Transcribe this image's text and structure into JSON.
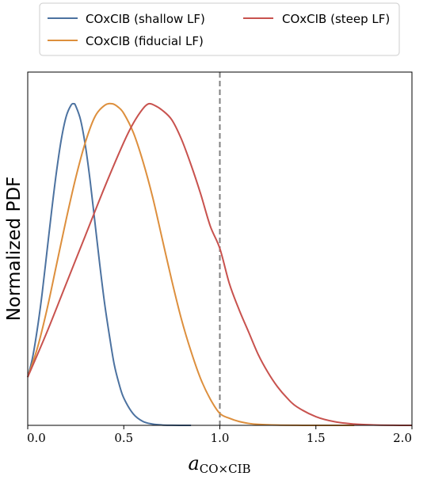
{
  "chart_data": {
    "type": "line",
    "xlabel_main": "a",
    "xlabel_sub": "CO×CIB",
    "ylabel": "Normalized PDF",
    "xlim": [
      0.0,
      2.0
    ],
    "ylim": [
      0.0,
      1.0
    ],
    "xticks": [
      "0.0",
      "0.5",
      "1.0",
      "1.5",
      "2.0"
    ],
    "y_ticklabels_shown": false,
    "grid": false,
    "legend_position": "top",
    "vline": {
      "x": 1.0,
      "style": "dashed",
      "color": "#7f7f7f"
    },
    "series": [
      {
        "name": "COxCIB (shallow LF)",
        "color": "#4c72a0",
        "x": [
          0.0,
          0.025,
          0.05,
          0.075,
          0.1,
          0.125,
          0.15,
          0.175,
          0.2,
          0.225,
          0.24,
          0.25,
          0.275,
          0.3,
          0.325,
          0.35,
          0.375,
          0.4,
          0.425,
          0.45,
          0.475,
          0.5,
          0.55,
          0.6,
          0.65,
          0.7,
          0.75,
          0.8,
          0.85
        ],
        "y": [
          0.15,
          0.21,
          0.3,
          0.41,
          0.54,
          0.67,
          0.79,
          0.89,
          0.96,
          0.995,
          1.0,
          0.993,
          0.95,
          0.87,
          0.76,
          0.63,
          0.5,
          0.38,
          0.28,
          0.19,
          0.13,
          0.085,
          0.035,
          0.012,
          0.004,
          0.001,
          0.0003,
          0.0001,
          0.0
        ]
      },
      {
        "name": "COxCIB (fiducial LF)",
        "color": "#dd8f3d",
        "x": [
          0.0,
          0.05,
          0.1,
          0.15,
          0.2,
          0.25,
          0.3,
          0.35,
          0.4,
          0.44,
          0.47,
          0.5,
          0.55,
          0.6,
          0.65,
          0.7,
          0.75,
          0.8,
          0.85,
          0.9,
          0.95,
          1.0,
          1.05,
          1.1,
          1.15,
          1.2,
          1.3,
          1.4,
          1.5,
          1.6,
          1.7
        ],
        "y": [
          0.15,
          0.24,
          0.36,
          0.5,
          0.64,
          0.77,
          0.88,
          0.96,
          0.995,
          1.0,
          0.99,
          0.97,
          0.91,
          0.82,
          0.71,
          0.58,
          0.45,
          0.33,
          0.23,
          0.145,
          0.082,
          0.037,
          0.022,
          0.012,
          0.006,
          0.003,
          0.0008,
          0.0002,
          5e-05,
          0.0,
          0.0
        ]
      },
      {
        "name": "COxCIB (steep LF)",
        "color": "#c8524e",
        "x": [
          0.0,
          0.1,
          0.2,
          0.3,
          0.4,
          0.5,
          0.55,
          0.6,
          0.63,
          0.66,
          0.7,
          0.75,
          0.8,
          0.85,
          0.9,
          0.95,
          1.0,
          1.05,
          1.1,
          1.15,
          1.2,
          1.25,
          1.3,
          1.35,
          1.4,
          1.5,
          1.6,
          1.7,
          1.8,
          1.9,
          2.0
        ],
        "y": [
          0.15,
          0.29,
          0.44,
          0.59,
          0.74,
          0.88,
          0.94,
          0.985,
          1.0,
          0.995,
          0.98,
          0.95,
          0.89,
          0.81,
          0.72,
          0.62,
          0.55,
          0.44,
          0.36,
          0.29,
          0.22,
          0.165,
          0.12,
          0.085,
          0.058,
          0.027,
          0.011,
          0.004,
          0.0013,
          0.0003,
          0.0
        ]
      }
    ]
  }
}
